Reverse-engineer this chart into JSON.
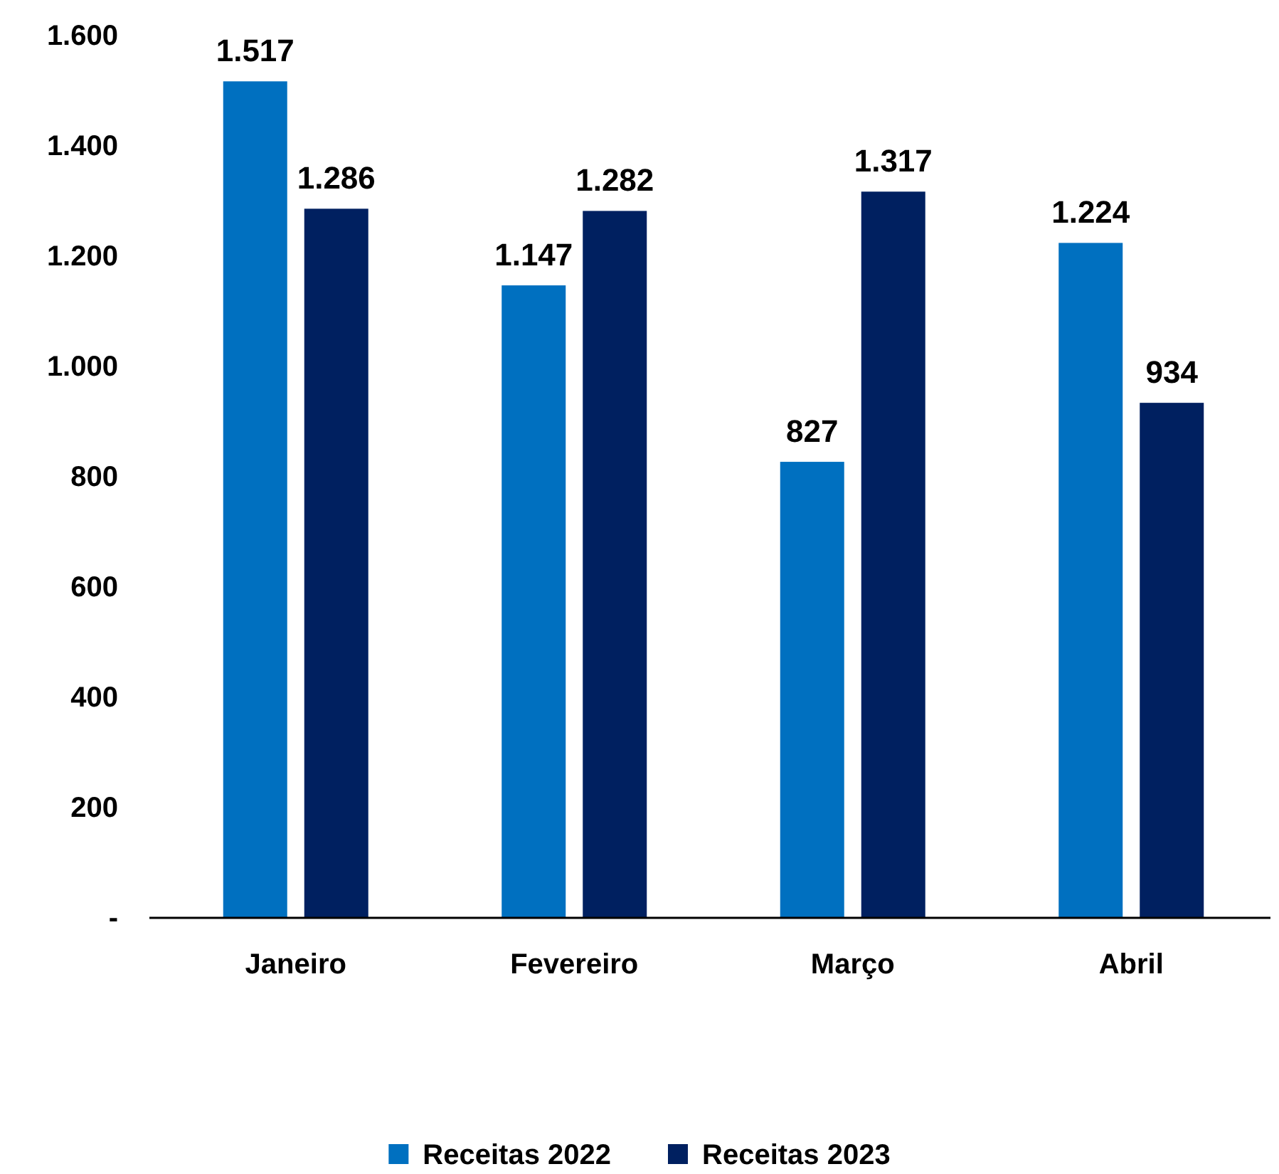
{
  "chart_data": {
    "type": "bar",
    "categories": [
      "Janeiro",
      "Fevereiro",
      "Março",
      "Abril"
    ],
    "series": [
      {
        "name": "Receitas 2022",
        "color": "#0070c0",
        "values": [
          1517,
          1147,
          827,
          1224
        ],
        "value_labels": [
          "1.517",
          "1.147",
          "827",
          "1.224"
        ]
      },
      {
        "name": "Receitas 2023",
        "color": "#002060",
        "values": [
          1286,
          1282,
          1317,
          934
        ],
        "value_labels": [
          "1.286",
          "1.282",
          "1.317",
          "934"
        ]
      }
    ],
    "ylim": [
      0,
      1600
    ],
    "yticks": [
      {
        "value": 0,
        "label": "-"
      },
      {
        "value": 200,
        "label": "200"
      },
      {
        "value": 400,
        "label": "400"
      },
      {
        "value": 600,
        "label": "600"
      },
      {
        "value": 800,
        "label": "800"
      },
      {
        "value": 1000,
        "label": "1.000"
      },
      {
        "value": 1200,
        "label": "1.200"
      },
      {
        "value": 1400,
        "label": "1.400"
      },
      {
        "value": 1600,
        "label": "1.600"
      }
    ],
    "grid": false,
    "legend": "bottom"
  }
}
